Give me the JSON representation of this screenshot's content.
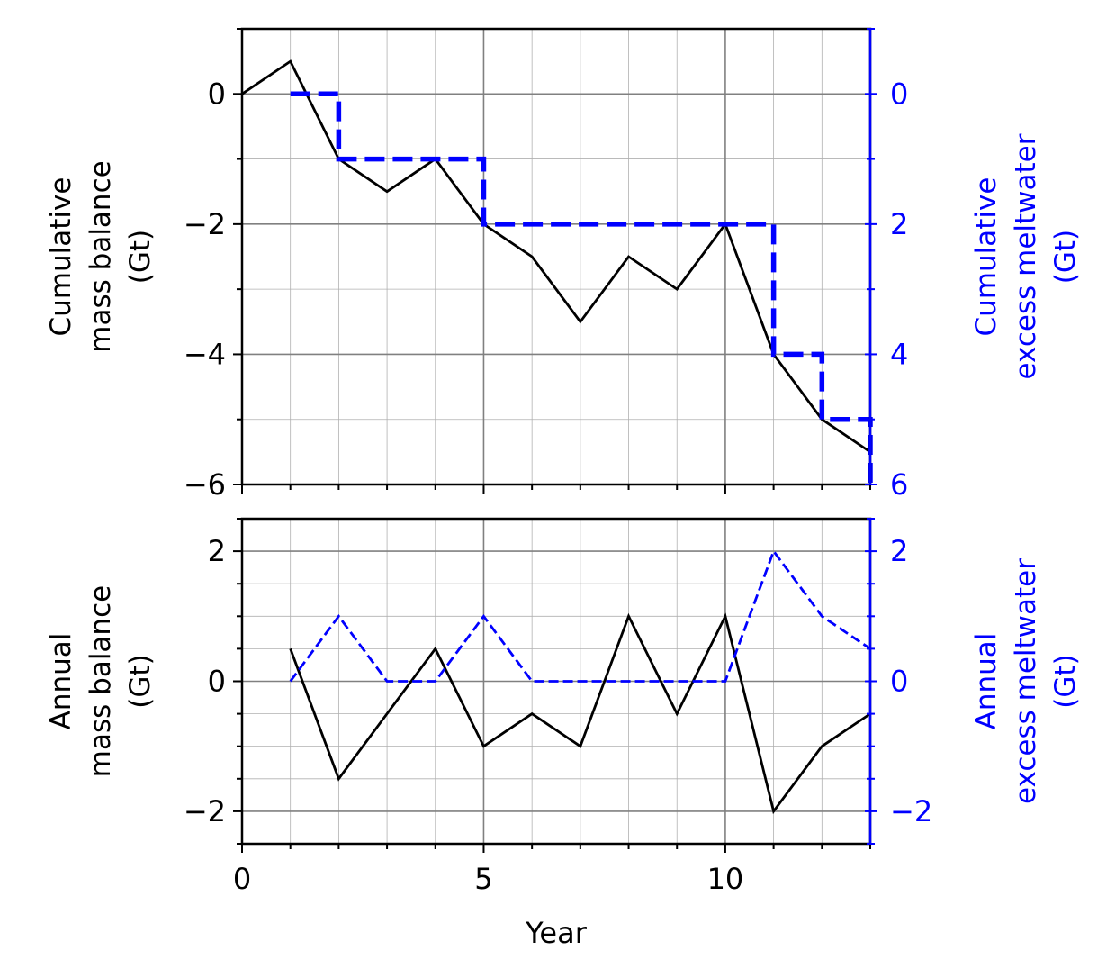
{
  "chart_data": [
    {
      "type": "line",
      "x": [
        0,
        1,
        2,
        3,
        4,
        5,
        6,
        7,
        8,
        9,
        10,
        11,
        12,
        13
      ],
      "series": [
        {
          "values": [
            0,
            0.5,
            -1,
            -1.5,
            -1,
            -2,
            -2.5,
            -3.5,
            -2.5,
            -3,
            -2,
            -4,
            -5,
            -5.5
          ],
          "axis": "left",
          "color": "#000000",
          "style": "solid"
        },
        {
          "x": [
            1,
            2,
            2,
            4,
            5,
            5,
            10,
            11,
            11,
            12,
            12,
            13,
            13
          ],
          "values": [
            0,
            0,
            1,
            1,
            1,
            2,
            2,
            2,
            4,
            4,
            5,
            5,
            6
          ],
          "axis": "right",
          "color": "#0000ff",
          "style": "dashed-thick"
        }
      ],
      "ylabel": [
        "Cumulative",
        "mass balance",
        "(Gt)"
      ],
      "y2label": [
        "Cumulative",
        "excess meltwater",
        "(Gt)"
      ],
      "ylim": [
        -6,
        1
      ],
      "y2lim": [
        6,
        -1
      ],
      "y2_inverted": true,
      "yticks": [
        "0",
        "−2",
        "−4",
        "−6"
      ],
      "yticks_values": [
        0,
        -2,
        -4,
        -6
      ],
      "y2ticks": [
        "0",
        "2",
        "4",
        "6"
      ],
      "y2ticks_values": [
        0,
        2,
        4,
        6
      ],
      "grid": true
    },
    {
      "type": "line",
      "x": [
        1,
        2,
        3,
        4,
        5,
        6,
        7,
        8,
        9,
        10,
        11,
        12,
        13
      ],
      "series": [
        {
          "values": [
            0.5,
            -1.5,
            -0.5,
            0.5,
            -1,
            -0.5,
            -1,
            1,
            -0.5,
            1,
            -2,
            -1,
            -0.5
          ],
          "axis": "left",
          "color": "#000000",
          "style": "solid"
        },
        {
          "values": [
            0,
            1,
            0,
            0,
            1,
            0,
            0,
            0,
            0,
            0,
            2,
            1,
            0.5
          ],
          "axis": "right",
          "color": "#0000ff",
          "style": "dashed"
        }
      ],
      "ylabel": [
        "Annual",
        "mass balance",
        "(Gt)"
      ],
      "y2label": [
        "Annual",
        "excess meltwater",
        "(Gt)"
      ],
      "xlabel": "Year",
      "xlim": [
        0,
        13
      ],
      "xticks": [
        "0",
        "5",
        "10"
      ],
      "xticks_values": [
        0,
        5,
        10
      ],
      "ylim": [
        -2.5,
        2.5
      ],
      "yticks": [
        "2",
        "0",
        "−2"
      ],
      "yticks_values": [
        2,
        0,
        -2
      ],
      "y2ticks": [
        "2",
        "0",
        "−2"
      ],
      "y2ticks_values": [
        2,
        0,
        -2
      ],
      "grid": true
    }
  ]
}
